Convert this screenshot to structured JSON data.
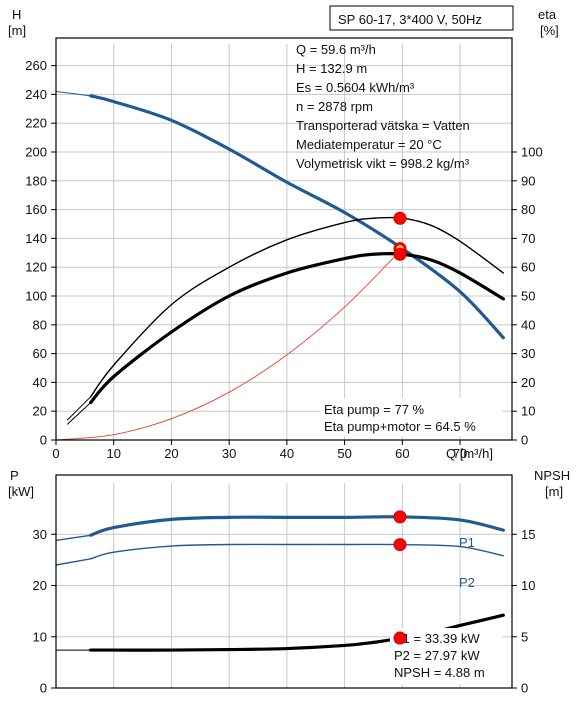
{
  "colors": {
    "head": "#1f5a93",
    "eff_thin": "#000000",
    "eff_thick": "#000000",
    "system": "#e8402f",
    "marker": "#ff0000",
    "marker_inner": "#ffd54a",
    "grid": "#c8c8c8",
    "frame": "#000000"
  },
  "chart_data": [
    {
      "type": "line",
      "title_box": "SP 60-17, 3*400 V, 50Hz",
      "y_left_label": [
        "H",
        "[m]"
      ],
      "y_right_label": [
        "eta",
        "[%]"
      ],
      "x_label": "Q [m³/h]",
      "xlim": [
        0,
        79
      ],
      "ylim": [
        0,
        275
      ],
      "y2lim": [
        0,
        137.5
      ],
      "x_ticks": [
        0,
        10,
        20,
        30,
        40,
        50,
        60,
        70
      ],
      "y_ticks": [
        0,
        20,
        40,
        60,
        80,
        100,
        120,
        140,
        160,
        180,
        200,
        220,
        240,
        260
      ],
      "y2_ticks": [
        0,
        10,
        20,
        30,
        40,
        50,
        60,
        70,
        80,
        90,
        100
      ],
      "grid": true,
      "series": [
        {
          "name": "H",
          "axis": "left",
          "style": "head",
          "x": [
            6,
            10,
            20,
            30,
            40,
            50,
            60,
            70,
            77.5
          ],
          "y": [
            239,
            235,
            222,
            202,
            179,
            158,
            132.9,
            103,
            71
          ]
        },
        {
          "name": "H-dashed",
          "axis": "left",
          "style": "head-thin",
          "x": [
            0,
            6
          ],
          "y": [
            242,
            239
          ]
        },
        {
          "name": "Eta pump",
          "axis": "right",
          "style": "eff_thin",
          "x": [
            6,
            10,
            20,
            30,
            40,
            50,
            55,
            60,
            65,
            70,
            77.5
          ],
          "y": [
            15,
            26,
            47,
            60,
            69.5,
            75.5,
            77,
            77,
            74.5,
            69,
            58
          ]
        },
        {
          "name": "Eta pump+motor",
          "axis": "right",
          "style": "eff_thick",
          "x": [
            6,
            10,
            20,
            30,
            40,
            50,
            55,
            60,
            65,
            70,
            77.5
          ],
          "y": [
            13,
            22,
            37.5,
            50,
            58,
            63,
            64.5,
            64.5,
            62.5,
            58,
            49
          ]
        },
        {
          "name": "eta-dashed-thin",
          "axis": "right",
          "style": "eff_thin_dash",
          "x": [
            2,
            6
          ],
          "y": [
            7,
            15
          ]
        },
        {
          "name": "eta-dashed-thick",
          "axis": "right",
          "style": "eff_thin_dash",
          "x": [
            2,
            6
          ],
          "y": [
            5.5,
            13
          ]
        },
        {
          "name": "system",
          "axis": "left",
          "style": "system",
          "x": [
            0,
            10,
            20,
            30,
            40,
            50,
            60
          ],
          "y": [
            0,
            3.7,
            14.8,
            33.2,
            59.1,
            92.3,
            132.9
          ]
        }
      ],
      "markers": [
        {
          "x": 59.6,
          "y": 77,
          "axis": "right"
        },
        {
          "x": 59.6,
          "y": 132.9,
          "axis": "left",
          "inner": true
        },
        {
          "x": 59.6,
          "y": 64.5,
          "axis": "right"
        }
      ],
      "info": [
        "Q = 59.6 m³/h",
        "H = 132.9 m",
        "Es = 0.5604 kWh/m³",
        "n = 2878 rpm",
        "Transporterad vätska = Vatten",
        "Mediatemperatur = 20 °C",
        "Volymetrisk vikt = 998.2 kg/m³"
      ],
      "eta_text": [
        "Eta pump = 77 %",
        "Eta pump+motor = 64.5 %"
      ]
    },
    {
      "type": "line",
      "y_left_label": [
        "P",
        "[kW]"
      ],
      "y_right_label": [
        "NPSH",
        "[m]"
      ],
      "xlim": [
        0,
        79
      ],
      "ylim": [
        0,
        40
      ],
      "y2lim": [
        0,
        20
      ],
      "y_ticks": [
        0,
        10,
        20,
        30
      ],
      "y2_ticks": [
        0,
        5,
        10,
        15
      ],
      "grid": true,
      "series": [
        {
          "name": "P1",
          "axis": "left",
          "style": "p1",
          "x": [
            6,
            10,
            20,
            30,
            40,
            50,
            60,
            70,
            77.5
          ],
          "y": [
            29.8,
            31.3,
            32.9,
            33.3,
            33.3,
            33.3,
            33.39,
            32.8,
            30.8
          ]
        },
        {
          "name": "P2",
          "axis": "left",
          "style": "p2",
          "x": [
            6,
            10,
            20,
            30,
            40,
            50,
            60,
            70,
            77.5
          ],
          "y": [
            25.2,
            26.5,
            27.7,
            28.0,
            28.0,
            28.0,
            27.97,
            27.6,
            25.8
          ]
        },
        {
          "name": "NPSH",
          "axis": "right",
          "style": "npsh",
          "x": [
            6,
            10,
            20,
            30,
            40,
            50,
            55,
            60,
            65,
            70,
            77.5
          ],
          "y": [
            3.7,
            3.7,
            3.7,
            3.75,
            3.85,
            4.15,
            4.45,
            4.88,
            5.4,
            6.1,
            7.1
          ]
        },
        {
          "name": "P1-dashed",
          "axis": "left",
          "style": "p2",
          "x": [
            0,
            6
          ],
          "y": [
            28.8,
            29.8
          ]
        },
        {
          "name": "P2-dashed",
          "axis": "left",
          "style": "p2",
          "x": [
            0,
            6
          ],
          "y": [
            24,
            25.2
          ]
        },
        {
          "name": "NPSH-dashed",
          "axis": "right",
          "style": "npsh-thin",
          "x": [
            0,
            6
          ],
          "y": [
            3.7,
            3.7
          ]
        }
      ],
      "markers": [
        {
          "x": 59.6,
          "y": 33.39,
          "axis": "left"
        },
        {
          "x": 59.6,
          "y": 27.97,
          "axis": "left"
        },
        {
          "x": 59.6,
          "y": 4.88,
          "axis": "right"
        }
      ],
      "series_labels": [
        "P1",
        "P2"
      ],
      "values_text": [
        "P1 = 33.39 kW",
        "P2 = 27.97 kW",
        "NPSH = 4.88 m"
      ]
    }
  ]
}
